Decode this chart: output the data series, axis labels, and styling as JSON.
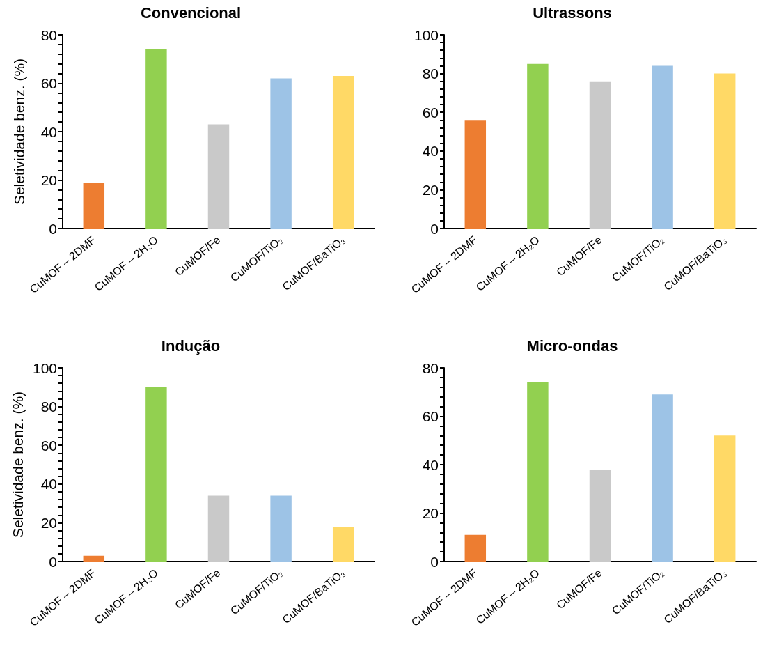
{
  "chart_data": [
    {
      "type": "bar",
      "title": "Convencional",
      "ylabel": "Seletividade benz. (%)",
      "categories": [
        "CuMOF – 2DMF",
        "CuMOF – 2H₂O",
        "CuMOF/Fe",
        "CuMOF/TiO₂",
        "CuMOF/BaTiO₃"
      ],
      "values": [
        19,
        74,
        43,
        62,
        63
      ],
      "colors": [
        "#ed7d31",
        "#92d050",
        "#c9c9c9",
        "#9dc3e6",
        "#ffd966"
      ],
      "ylim": [
        0,
        80
      ],
      "yticks": [
        0,
        {
          "value": 4,
          "label": null
        },
        {
          "value": 8,
          "label": null
        },
        {
          "value": 12,
          "label": null
        },
        {
          "value": 16,
          "label": null
        },
        20,
        {
          "value": 24,
          "label": null
        },
        {
          "value": 28,
          "label": null
        },
        {
          "value": 32,
          "label": null
        },
        {
          "value": 36,
          "label": null
        },
        40,
        {
          "value": 44,
          "label": null
        },
        {
          "value": 48,
          "label": null
        },
        {
          "value": 52,
          "label": null
        },
        {
          "value": 56,
          "label": null
        },
        60,
        {
          "value": 64,
          "label": null
        },
        {
          "value": 68,
          "label": null
        },
        {
          "value": 72,
          "label": null
        },
        {
          "value": 76,
          "label": null
        },
        80
      ]
    },
    {
      "type": "bar",
      "title": "Ultrassons",
      "categories": [
        "CuMOF – 2DMF",
        "CuMOF – 2H₂O",
        "CuMOF/Fe",
        "CuMOF/TiO₂",
        "CuMOF/BaTiO₃"
      ],
      "values": [
        56,
        85,
        76,
        84,
        80
      ],
      "colors": [
        "#ed7d31",
        "#92d050",
        "#c9c9c9",
        "#9dc3e6",
        "#ffd966"
      ],
      "ylim": [
        0,
        100
      ],
      "yticks": [
        0,
        {
          "value": 4,
          "label": null
        },
        {
          "value": 8,
          "label": null
        },
        {
          "value": 12,
          "label": null
        },
        {
          "value": 16,
          "label": null
        },
        20,
        {
          "value": 24,
          "label": null
        },
        {
          "value": 28,
          "label": null
        },
        {
          "value": 32,
          "label": null
        },
        {
          "value": 36,
          "label": null
        },
        40,
        {
          "value": 44,
          "label": null
        },
        {
          "value": 48,
          "label": null
        },
        {
          "value": 52,
          "label": null
        },
        {
          "value": 56,
          "label": null
        },
        60,
        {
          "value": 64,
          "label": null
        },
        {
          "value": 68,
          "label": null
        },
        {
          "value": 72,
          "label": null
        },
        {
          "value": 76,
          "label": null
        },
        80,
        {
          "value": 84,
          "label": null
        },
        {
          "value": 88,
          "label": null
        },
        {
          "value": 92,
          "label": null
        },
        {
          "value": 96,
          "label": null
        },
        100
      ]
    },
    {
      "type": "bar",
      "title": "Indução",
      "ylabel": "Seletividade benz. (%)",
      "categories": [
        "CuMOF – 2DMF",
        "CuMOF – 2H₂O",
        "CuMOF/Fe",
        "CuMOF/TiO₂",
        "CuMOF/BaTiO₃"
      ],
      "values": [
        3,
        90,
        34,
        34,
        18
      ],
      "colors": [
        "#ed7d31",
        "#92d050",
        "#c9c9c9",
        "#9dc3e6",
        "#ffd966"
      ],
      "ylim": [
        0,
        100
      ],
      "yticks": [
        0,
        {
          "value": 4,
          "label": null
        },
        {
          "value": 8,
          "label": null
        },
        {
          "value": 12,
          "label": null
        },
        {
          "value": 16,
          "label": null
        },
        20,
        {
          "value": 24,
          "label": null
        },
        {
          "value": 28,
          "label": null
        },
        {
          "value": 32,
          "label": null
        },
        {
          "value": 36,
          "label": null
        },
        40,
        {
          "value": 44,
          "label": null
        },
        {
          "value": 48,
          "label": null
        },
        {
          "value": 52,
          "label": null
        },
        {
          "value": 56,
          "label": null
        },
        60,
        {
          "value": 64,
          "label": null
        },
        {
          "value": 68,
          "label": null
        },
        {
          "value": 72,
          "label": null
        },
        {
          "value": 76,
          "label": null
        },
        80,
        {
          "value": 84,
          "label": null
        },
        {
          "value": 88,
          "label": null
        },
        {
          "value": 92,
          "label": null
        },
        {
          "value": 96,
          "label": null
        },
        100
      ]
    },
    {
      "type": "bar",
      "title": "Micro-ondas",
      "categories": [
        "CuMOF – 2DMF",
        "CuMOF – 2H₂O",
        "CuMOF/Fe",
        "CuMOF/TiO₂",
        "CuMOF/BaTiO₃"
      ],
      "values": [
        11,
        74,
        38,
        69,
        52
      ],
      "colors": [
        "#ed7d31",
        "#92d050",
        "#c9c9c9",
        "#9dc3e6",
        "#ffd966"
      ],
      "ylim": [
        0,
        80
      ],
      "yticks": [
        0,
        {
          "value": 4,
          "label": null
        },
        {
          "value": 8,
          "label": null
        },
        {
          "value": 12,
          "label": null
        },
        {
          "value": 16,
          "label": null
        },
        20,
        {
          "value": 24,
          "label": null
        },
        {
          "value": 28,
          "label": null
        },
        {
          "value": 32,
          "label": null
        },
        {
          "value": 36,
          "label": null
        },
        40,
        {
          "value": 44,
          "label": null
        },
        {
          "value": 48,
          "label": null
        },
        {
          "value": 52,
          "label": null
        },
        {
          "value": 56,
          "label": null
        },
        60,
        {
          "value": 64,
          "label": null
        },
        {
          "value": 68,
          "label": null
        },
        {
          "value": 72,
          "label": null
        },
        {
          "value": 76,
          "label": null
        },
        80
      ]
    }
  ]
}
